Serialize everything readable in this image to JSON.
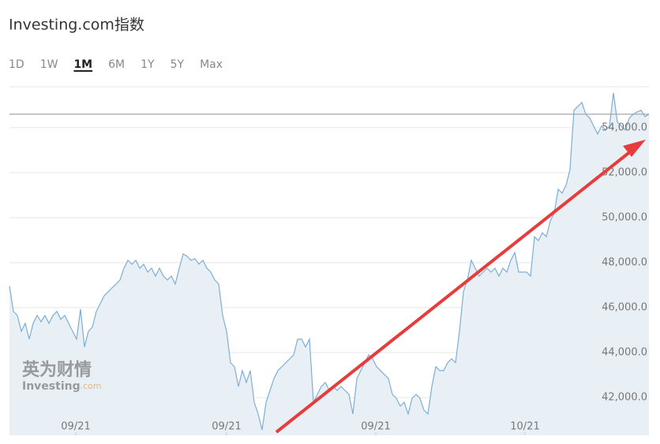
{
  "chart_data": {
    "type": "area",
    "title": "Investing.com指数",
    "ranges": [
      "1D",
      "1W",
      "1M",
      "6M",
      "1Y",
      "5Y",
      "Max"
    ],
    "selected_range": 2,
    "watermark": [
      "英为财情",
      "Investing",
      ".com"
    ],
    "color": "#7eaed6",
    "fill": "#e8f0f6",
    "grid": true,
    "previous_close": 54600,
    "xlim": [
      0,
      162
    ],
    "xticks": [
      {
        "value": 16.8,
        "label": "09/21"
      },
      {
        "value": 55,
        "label": "09/21"
      },
      {
        "value": 92.8,
        "label": "09/21"
      },
      {
        "value": 130.6,
        "label": "10/21"
      }
    ],
    "ylim": [
      40320,
      55820
    ],
    "yticks": [
      {
        "value": 42000,
        "label": "42,000.0"
      },
      {
        "value": 44000,
        "label": "44,000.0"
      },
      {
        "value": 46000,
        "label": "46,000.0"
      },
      {
        "value": 48000,
        "label": "48,000.0"
      },
      {
        "value": 50000,
        "label": "50,000.0"
      },
      {
        "value": 52000,
        "label": "52,000.0"
      },
      {
        "value": 54000,
        "label": "54,000.0"
      }
    ],
    "values": [
      46950,
      45830,
      45650,
      44950,
      45300,
      44600,
      45300,
      45650,
      45370,
      45650,
      45300,
      45650,
      45830,
      45480,
      45650,
      45300,
      44950,
      44600,
      45930,
      44250,
      44950,
      45130,
      45830,
      46180,
      46530,
      46700,
      46880,
      47050,
      47230,
      47750,
      48100,
      47930,
      48100,
      47750,
      47930,
      47580,
      47750,
      47400,
      47750,
      47400,
      47230,
      47400,
      47050,
      47750,
      48390,
      48280,
      48100,
      48170,
      47930,
      48100,
      47750,
      47580,
      47230,
      47050,
      45650,
      44950,
      43550,
      43370,
      42490,
      43200,
      42670,
      43200,
      41790,
      41270,
      40560,
      41790,
      42320,
      42840,
      43200,
      43370,
      43550,
      43720,
      43900,
      44600,
      44600,
      44250,
      44600,
      41790,
      42140,
      42490,
      42670,
      42320,
      42490,
      42320,
      42490,
      42320,
      42140,
      41270,
      42840,
      43200,
      43550,
      43900,
      43720,
      43370,
      43200,
      43020,
      42840,
      42140,
      41970,
      41620,
      41790,
      41270,
      41970,
      42140,
      41970,
      41440,
      41270,
      42490,
      43370,
      43200,
      43200,
      43550,
      43720,
      43550,
      44950,
      46700,
      47230,
      48100,
      47750,
      47400,
      47580,
      47750,
      47580,
      47750,
      47400,
      47750,
      47580,
      48100,
      48450,
      47580,
      47580,
      47580,
      47400,
      49150,
      48980,
      49330,
      49150,
      49850,
      50200,
      51260,
      51090,
      51440,
      52140,
      54770,
      54950,
      55120,
      54600,
      54420,
      54070,
      53720,
      54070,
      53900,
      54070,
      55550,
      54250,
      54070,
      53900,
      54420,
      54600,
      54700,
      54770,
      54490,
      54600
    ]
  }
}
